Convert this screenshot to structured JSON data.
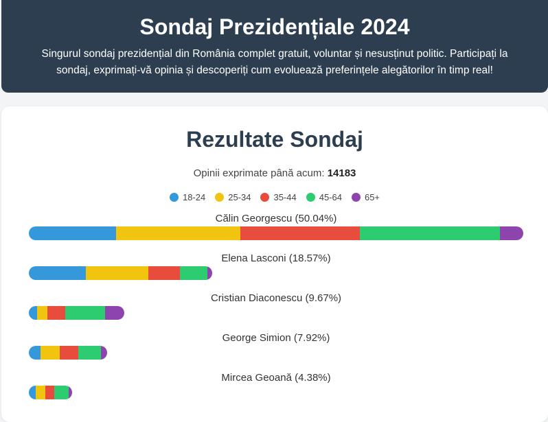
{
  "header": {
    "title": "Sondaj Prezidențiale 2024",
    "description": "Singurul sondaj prezidențial din România complet gratuit, voluntar și nesusținut politic. Participați la sondaj, exprimați-vă opinia și descoperiți cum evoluează preferințele alegătorilor în timp real!"
  },
  "results": {
    "title": "Rezultate Sondaj",
    "total_label": "Opinii exprimate până acum:",
    "total_value": "14183"
  },
  "chart_data": {
    "type": "bar",
    "stacked": true,
    "orientation": "horizontal",
    "xlim": [
      0,
      50.04
    ],
    "categories": [
      "Călin Georgescu",
      "Elena Lasconi",
      "Cristian Diaconescu",
      "George Simion",
      "Mircea Geoană"
    ],
    "labels": [
      "Călin Georgescu (50.04%)",
      "Elena Lasconi (18.57%)",
      "Cristian Diaconescu (9.67%)",
      "George Simion (7.92%)",
      "Mircea Geoană (4.38%)"
    ],
    "totals": [
      50.04,
      18.57,
      9.67,
      7.92,
      4.38
    ],
    "series": [
      {
        "name": "18-24",
        "color": "#3498db",
        "values": [
          8.8,
          5.8,
          0.8,
          1.2,
          0.7
        ]
      },
      {
        "name": "25-34",
        "color": "#f1c40f",
        "values": [
          12.6,
          6.3,
          1.1,
          1.9,
          1.0
        ]
      },
      {
        "name": "35-44",
        "color": "#e74c3c",
        "values": [
          12.1,
          3.2,
          1.8,
          1.9,
          0.9
        ]
      },
      {
        "name": "45-64",
        "color": "#2ecc71",
        "values": [
          14.2,
          2.8,
          4.0,
          2.3,
          1.4
        ]
      },
      {
        "name": "65+",
        "color": "#8e44ad",
        "values": [
          2.34,
          0.47,
          1.97,
          0.62,
          0.38
        ]
      }
    ]
  }
}
